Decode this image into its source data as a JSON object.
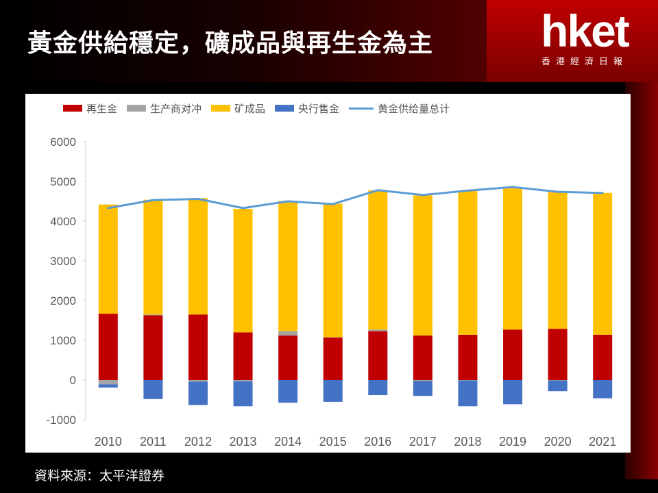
{
  "header": {
    "title": "黃金供給穩定，礦成品與再生金為主"
  },
  "logo": {
    "word": "hket",
    "subtitle": "香港經濟日報"
  },
  "source_note": "資料來源：太平洋證券",
  "colors": {
    "recycled": "#C00000",
    "hedging": "#A5A5A5",
    "mine": "#FFC000",
    "central_bank": "#4472C4",
    "total": "#5B9BD5"
  },
  "chart_data": {
    "type": "bar",
    "stacked": true,
    "categories": [
      "2010",
      "2011",
      "2012",
      "2013",
      "2014",
      "2015",
      "2016",
      "2017",
      "2018",
      "2019",
      "2020",
      "2021"
    ],
    "series": [
      {
        "name": "再生金",
        "type": "bar",
        "color": "#C00000",
        "values": [
          1670,
          1630,
          1650,
          1200,
          1120,
          1070,
          1230,
          1120,
          1140,
          1270,
          1290,
          1140
        ]
      },
      {
        "name": "生产商对冲",
        "type": "bar",
        "color": "#A5A5A5",
        "values": [
          -110,
          20,
          -40,
          -30,
          110,
          10,
          40,
          -20,
          -10,
          0,
          -10,
          0
        ]
      },
      {
        "name": "矿成品",
        "type": "bar",
        "color": "#FFC000",
        "values": [
          2750,
          2890,
          2930,
          3110,
          3280,
          3360,
          3510,
          3530,
          3620,
          3580,
          3470,
          3570
        ]
      },
      {
        "name": "央行售金",
        "type": "bar",
        "color": "#4472C4",
        "values": [
          -80,
          -480,
          -590,
          -630,
          -570,
          -550,
          -380,
          -380,
          -650,
          -610,
          -270,
          -460
        ]
      },
      {
        "name": "黄金供给量总计",
        "type": "line",
        "color": "#5B9BD5",
        "values": [
          4330,
          4530,
          4560,
          4330,
          4500,
          4430,
          4780,
          4660,
          4770,
          4860,
          4740,
          4710
        ]
      }
    ],
    "yticks": [
      "6000",
      "5000",
      "4000",
      "3000",
      "2000",
      "1000",
      "0",
      "-1000"
    ],
    "ylim": [
      -1000,
      6000
    ],
    "grid": false,
    "legend_position": "top"
  }
}
